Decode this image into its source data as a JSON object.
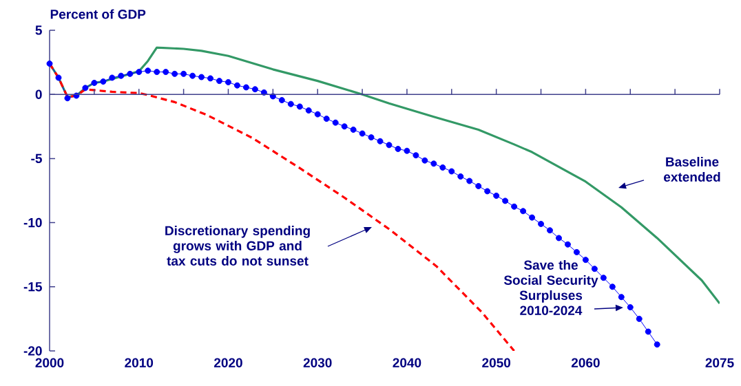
{
  "chart_data": {
    "type": "line",
    "ylabel": "Percent of GDP",
    "xlim": [
      2000,
      2075
    ],
    "ylim": [
      -20,
      5
    ],
    "xticks": [
      2000,
      {
        "value": 2005,
        "label": null
      },
      2010,
      {
        "value": 2015,
        "label": null
      },
      2020,
      {
        "value": 2025,
        "label": null
      },
      2030,
      {
        "value": 2035,
        "label": null
      },
      2040,
      {
        "value": 2045,
        "label": null
      },
      2050,
      {
        "value": 2055,
        "label": null
      },
      2060,
      {
        "value": 2065,
        "label": null
      },
      {
        "value": 2070,
        "label": null
      },
      2075
    ],
    "yticks": [
      5,
      0,
      -5,
      -10,
      -15,
      -20
    ],
    "grid": false,
    "ref_lines": [
      {
        "axis": "y",
        "value": 0,
        "color": "#40408c"
      }
    ],
    "series": [
      {
        "color": "#339966",
        "marker": "none",
        "line_style": "solid",
        "x": [
          2000,
          2001,
          2002,
          2003,
          2004,
          2005,
          2006,
          2007,
          2008,
          2009,
          2010,
          2011,
          2012,
          2015,
          2017,
          2020,
          2025,
          2030,
          2035,
          2038,
          2043,
          2048,
          2052,
          2054,
          2060,
          2064,
          2068,
          2073,
          2075
        ],
        "values": [
          2.4,
          1.3,
          -0.2,
          -0.1,
          0.5,
          0.9,
          1.0,
          1.2,
          1.4,
          1.6,
          1.8,
          2.6,
          3.65,
          3.55,
          3.4,
          3.0,
          1.95,
          1.05,
          0.0,
          -0.7,
          -1.75,
          -2.75,
          -3.9,
          -4.5,
          -6.8,
          -8.8,
          -11.2,
          -14.5,
          -16.3
        ]
      },
      {
        "color": "#0000ff",
        "marker": "circle",
        "line_style": "solid",
        "x": [
          2000,
          2001,
          2002,
          2003,
          2004,
          2005,
          2006,
          2007,
          2008,
          2009,
          2010,
          2011,
          2012,
          2013,
          2014,
          2015,
          2016,
          2017,
          2018,
          2019,
          2020,
          2021,
          2022,
          2023,
          2024,
          2025,
          2026,
          2027,
          2028,
          2029,
          2030,
          2031,
          2032,
          2033,
          2034,
          2035,
          2036,
          2037,
          2038,
          2039,
          2040,
          2041,
          2042,
          2043,
          2044,
          2045,
          2046,
          2047,
          2048,
          2049,
          2050,
          2051,
          2052,
          2053,
          2054,
          2055,
          2056,
          2057,
          2058,
          2059,
          2060,
          2061,
          2062,
          2063,
          2064,
          2065,
          2066,
          2067,
          2068
        ],
        "values": [
          2.4,
          1.3,
          -0.3,
          -0.1,
          0.5,
          0.9,
          1.0,
          1.3,
          1.45,
          1.6,
          1.75,
          1.85,
          1.75,
          1.75,
          1.6,
          1.6,
          1.45,
          1.35,
          1.25,
          1.05,
          0.95,
          0.7,
          0.55,
          0.4,
          0.15,
          -0.15,
          -0.45,
          -0.75,
          -0.95,
          -1.25,
          -1.55,
          -1.9,
          -2.2,
          -2.5,
          -2.75,
          -3.05,
          -3.35,
          -3.65,
          -3.95,
          -4.25,
          -4.4,
          -4.75,
          -5.15,
          -5.4,
          -5.7,
          -6.0,
          -6.4,
          -6.75,
          -7.15,
          -7.55,
          -7.9,
          -8.3,
          -8.75,
          -9.1,
          -9.6,
          -10.1,
          -10.6,
          -11.2,
          -11.7,
          -12.3,
          -12.9,
          -13.6,
          -14.3,
          -15.0,
          -15.8,
          -16.6,
          -17.5,
          -18.5,
          -19.5
        ]
      },
      {
        "color": "#ff0000",
        "marker": "none",
        "line_style": "dashed",
        "x": [
          2000,
          2001,
          2002,
          2003,
          2004,
          2007,
          2010,
          2011,
          2014,
          2017.6,
          2022.7,
          2027.9,
          2033,
          2038.1,
          2043.3,
          2048.4,
          2052
        ],
        "values": [
          2.4,
          1.3,
          -0.2,
          -0.1,
          0.4,
          0.2,
          0.1,
          -0.05,
          -0.6,
          -1.6,
          -3.4,
          -5.7,
          -8.05,
          -10.55,
          -13.4,
          -17.0,
          -20.0
        ]
      }
    ],
    "annotations": [
      "Discretionary spending grows with GDP and tax cuts do not sunset",
      "Baseline extended",
      "Save the Social Security Surpluses 2010-2024"
    ]
  }
}
